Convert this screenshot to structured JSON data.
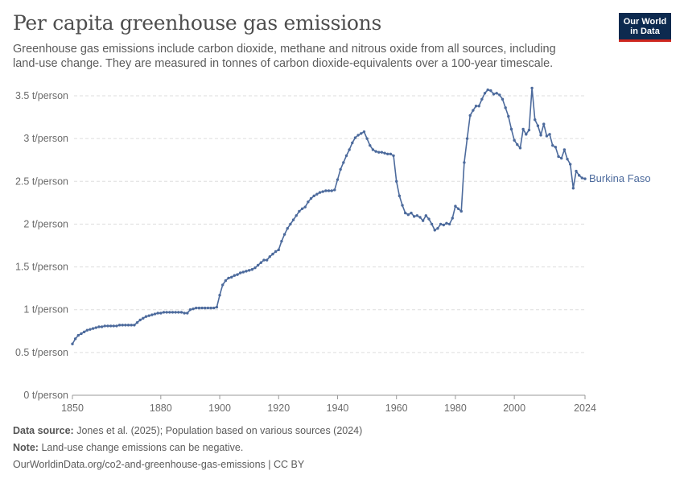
{
  "header": {
    "title": "Per capita greenhouse gas emissions",
    "subtitle": "Greenhouse gas emissions include carbon dioxide, methane and nitrous oxide from all sources, including land-use change. They are measured in tonnes of carbon dioxide-equivalents over a 100-year timescale."
  },
  "logo": {
    "line1": "Our World",
    "line2": "in Data",
    "bg_color": "#0d2a4f",
    "accent_color": "#ce261e"
  },
  "footer": {
    "source_label": "Data source:",
    "source_text": "Jones et al. (2025); Population based on various sources (2024)",
    "note_label": "Note:",
    "note_text": "Land-use change emissions can be negative.",
    "url_text": "OurWorldinData.org/co2-and-greenhouse-gas-emissions | CC BY"
  },
  "chart_data": {
    "type": "line",
    "title": "Per capita greenhouse gas emissions",
    "xlabel": "",
    "ylabel": "",
    "xlim": [
      1850,
      2024
    ],
    "ylim": [
      0,
      3.5
    ],
    "x_ticks": [
      1850,
      1880,
      1900,
      1920,
      1940,
      1960,
      1980,
      2000,
      2024
    ],
    "y_ticks": [
      {
        "value": 0,
        "label": "0 t/person"
      },
      {
        "value": 0.5,
        "label": "0.5 t/person"
      },
      {
        "value": 1,
        "label": "1 t/person"
      },
      {
        "value": 1.5,
        "label": "1.5 t/person"
      },
      {
        "value": 2,
        "label": "2 t/person"
      },
      {
        "value": 2.5,
        "label": "2.5 t/person"
      },
      {
        "value": 3,
        "label": "3 t/person"
      },
      {
        "value": 3.5,
        "label": "3.5 t/person"
      }
    ],
    "grid": "horizontal-dashed",
    "series_color": "#4c6a9c",
    "series": [
      {
        "name": "Burkina Faso",
        "points": [
          [
            1850,
            0.6
          ],
          [
            1851,
            0.66
          ],
          [
            1852,
            0.7
          ],
          [
            1853,
            0.72
          ],
          [
            1854,
            0.74
          ],
          [
            1855,
            0.76
          ],
          [
            1856,
            0.77
          ],
          [
            1857,
            0.78
          ],
          [
            1858,
            0.79
          ],
          [
            1859,
            0.8
          ],
          [
            1860,
            0.8
          ],
          [
            1861,
            0.81
          ],
          [
            1862,
            0.81
          ],
          [
            1863,
            0.81
          ],
          [
            1864,
            0.81
          ],
          [
            1865,
            0.81
          ],
          [
            1866,
            0.82
          ],
          [
            1867,
            0.82
          ],
          [
            1868,
            0.82
          ],
          [
            1869,
            0.82
          ],
          [
            1870,
            0.82
          ],
          [
            1871,
            0.82
          ],
          [
            1872,
            0.85
          ],
          [
            1873,
            0.88
          ],
          [
            1874,
            0.9
          ],
          [
            1875,
            0.92
          ],
          [
            1876,
            0.93
          ],
          [
            1877,
            0.94
          ],
          [
            1878,
            0.95
          ],
          [
            1879,
            0.96
          ],
          [
            1880,
            0.96
          ],
          [
            1881,
            0.97
          ],
          [
            1882,
            0.97
          ],
          [
            1883,
            0.97
          ],
          [
            1884,
            0.97
          ],
          [
            1885,
            0.97
          ],
          [
            1886,
            0.97
          ],
          [
            1887,
            0.97
          ],
          [
            1888,
            0.96
          ],
          [
            1889,
            0.96
          ],
          [
            1890,
            1.0
          ],
          [
            1891,
            1.01
          ],
          [
            1892,
            1.02
          ],
          [
            1893,
            1.02
          ],
          [
            1894,
            1.02
          ],
          [
            1895,
            1.02
          ],
          [
            1896,
            1.02
          ],
          [
            1897,
            1.02
          ],
          [
            1898,
            1.02
          ],
          [
            1899,
            1.03
          ],
          [
            1900,
            1.17
          ],
          [
            1901,
            1.29
          ],
          [
            1902,
            1.34
          ],
          [
            1903,
            1.37
          ],
          [
            1904,
            1.38
          ],
          [
            1905,
            1.4
          ],
          [
            1906,
            1.41
          ],
          [
            1907,
            1.43
          ],
          [
            1908,
            1.44
          ],
          [
            1909,
            1.45
          ],
          [
            1910,
            1.46
          ],
          [
            1911,
            1.47
          ],
          [
            1912,
            1.49
          ],
          [
            1913,
            1.52
          ],
          [
            1914,
            1.55
          ],
          [
            1915,
            1.58
          ],
          [
            1916,
            1.58
          ],
          [
            1917,
            1.62
          ],
          [
            1918,
            1.65
          ],
          [
            1919,
            1.68
          ],
          [
            1920,
            1.7
          ],
          [
            1921,
            1.8
          ],
          [
            1922,
            1.88
          ],
          [
            1923,
            1.95
          ],
          [
            1924,
            2.0
          ],
          [
            1925,
            2.05
          ],
          [
            1926,
            2.1
          ],
          [
            1927,
            2.15
          ],
          [
            1928,
            2.18
          ],
          [
            1929,
            2.2
          ],
          [
            1930,
            2.26
          ],
          [
            1931,
            2.3
          ],
          [
            1932,
            2.33
          ],
          [
            1933,
            2.35
          ],
          [
            1934,
            2.37
          ],
          [
            1935,
            2.38
          ],
          [
            1936,
            2.39
          ],
          [
            1937,
            2.39
          ],
          [
            1938,
            2.39
          ],
          [
            1939,
            2.4
          ],
          [
            1940,
            2.52
          ],
          [
            1941,
            2.64
          ],
          [
            1942,
            2.72
          ],
          [
            1943,
            2.8
          ],
          [
            1944,
            2.87
          ],
          [
            1945,
            2.95
          ],
          [
            1946,
            3.01
          ],
          [
            1947,
            3.04
          ],
          [
            1948,
            3.06
          ],
          [
            1949,
            3.08
          ],
          [
            1950,
            3.0
          ],
          [
            1951,
            2.92
          ],
          [
            1952,
            2.87
          ],
          [
            1953,
            2.85
          ],
          [
            1954,
            2.84
          ],
          [
            1955,
            2.84
          ],
          [
            1956,
            2.83
          ],
          [
            1957,
            2.82
          ],
          [
            1958,
            2.82
          ],
          [
            1959,
            2.8
          ],
          [
            1960,
            2.5
          ],
          [
            1961,
            2.33
          ],
          [
            1962,
            2.22
          ],
          [
            1963,
            2.13
          ],
          [
            1964,
            2.11
          ],
          [
            1965,
            2.13
          ],
          [
            1966,
            2.09
          ],
          [
            1967,
            2.1
          ],
          [
            1968,
            2.08
          ],
          [
            1969,
            2.04
          ],
          [
            1970,
            2.1
          ],
          [
            1971,
            2.06
          ],
          [
            1972,
            2.0
          ],
          [
            1973,
            1.93
          ],
          [
            1974,
            1.95
          ],
          [
            1975,
            2.0
          ],
          [
            1976,
            1.99
          ],
          [
            1977,
            2.01
          ],
          [
            1978,
            2.0
          ],
          [
            1979,
            2.07
          ],
          [
            1980,
            2.21
          ],
          [
            1981,
            2.18
          ],
          [
            1982,
            2.15
          ],
          [
            1983,
            2.72
          ],
          [
            1984,
            3.0
          ],
          [
            1985,
            3.27
          ],
          [
            1986,
            3.33
          ],
          [
            1987,
            3.38
          ],
          [
            1988,
            3.38
          ],
          [
            1989,
            3.46
          ],
          [
            1990,
            3.53
          ],
          [
            1991,
            3.57
          ],
          [
            1992,
            3.56
          ],
          [
            1993,
            3.52
          ],
          [
            1994,
            3.53
          ],
          [
            1995,
            3.51
          ],
          [
            1996,
            3.46
          ],
          [
            1997,
            3.36
          ],
          [
            1998,
            3.26
          ],
          [
            1999,
            3.11
          ],
          [
            2000,
            2.98
          ],
          [
            2001,
            2.93
          ],
          [
            2002,
            2.89
          ],
          [
            2003,
            3.11
          ],
          [
            2004,
            3.05
          ],
          [
            2005,
            3.1
          ],
          [
            2006,
            3.59
          ],
          [
            2007,
            3.22
          ],
          [
            2008,
            3.15
          ],
          [
            2009,
            3.04
          ],
          [
            2010,
            3.17
          ],
          [
            2011,
            3.03
          ],
          [
            2012,
            3.05
          ],
          [
            2013,
            2.92
          ],
          [
            2014,
            2.9
          ],
          [
            2015,
            2.79
          ],
          [
            2016,
            2.77
          ],
          [
            2017,
            2.87
          ],
          [
            2018,
            2.76
          ],
          [
            2019,
            2.7
          ],
          [
            2020,
            2.42
          ],
          [
            2021,
            2.62
          ],
          [
            2022,
            2.57
          ],
          [
            2023,
            2.54
          ],
          [
            2024,
            2.53
          ]
        ]
      }
    ]
  }
}
